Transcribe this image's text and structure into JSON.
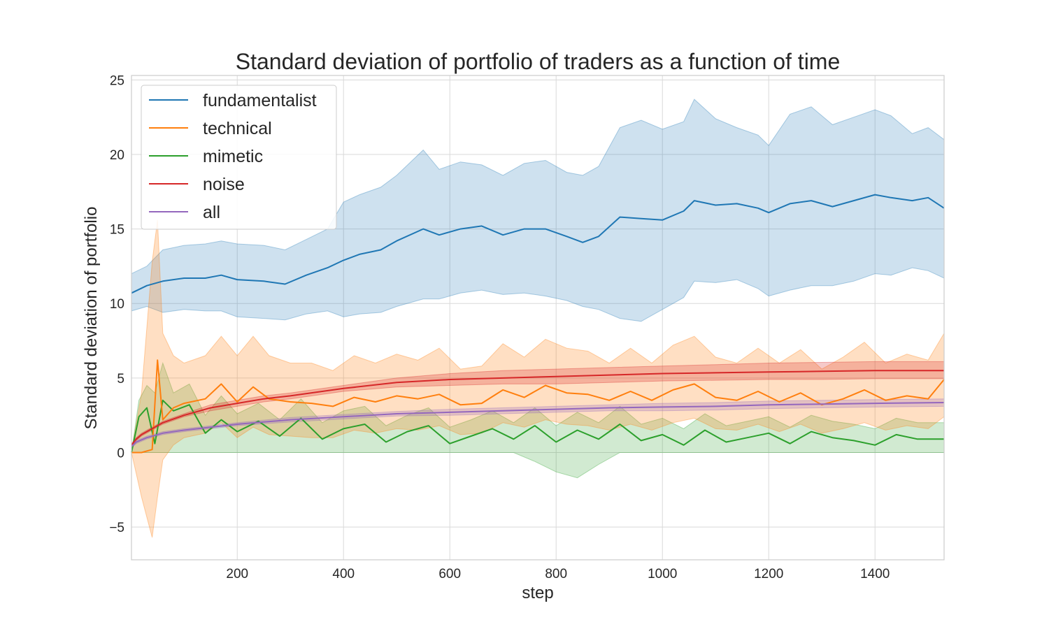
{
  "chart_data": {
    "type": "line",
    "title": "Standard deviation of portfolio of traders as a function of time",
    "xlabel": "step",
    "ylabel": "Standard deviation of portfolio",
    "xlim": [
      1,
      1530
    ],
    "ylim": [
      -7.2,
      25.3
    ],
    "xticks": [
      200,
      400,
      600,
      800,
      1000,
      1200,
      1400
    ],
    "xtick_labels": [
      "200",
      "400",
      "600",
      "800",
      "1000",
      "1200",
      "1400"
    ],
    "yticks": [
      -5,
      0,
      5,
      10,
      15,
      20,
      25
    ],
    "ytick_labels": [
      "−5",
      "0",
      "5",
      "10",
      "15",
      "20",
      "25"
    ],
    "grid": true,
    "legend_position": "upper-left",
    "series": [
      {
        "name": "fundamentalist",
        "color": "#1f77b4",
        "x": [
          1,
          30,
          60,
          100,
          140,
          170,
          200,
          250,
          290,
          330,
          370,
          400,
          430,
          470,
          500,
          550,
          580,
          620,
          660,
          700,
          740,
          780,
          820,
          850,
          880,
          920,
          960,
          1000,
          1040,
          1060,
          1100,
          1140,
          1180,
          1200,
          1240,
          1280,
          1320,
          1360,
          1400,
          1430,
          1470,
          1500,
          1530
        ],
        "values": [
          10.7,
          11.2,
          11.5,
          11.7,
          11.7,
          11.9,
          11.6,
          11.5,
          11.3,
          11.9,
          12.4,
          12.9,
          13.3,
          13.6,
          14.2,
          15.0,
          14.6,
          15.0,
          15.2,
          14.6,
          15.0,
          15.0,
          14.5,
          14.1,
          14.5,
          15.8,
          15.7,
          15.6,
          16.2,
          16.9,
          16.6,
          16.7,
          16.4,
          16.1,
          16.7,
          16.9,
          16.5,
          16.9,
          17.3,
          17.1,
          16.9,
          17.1,
          16.4
        ],
        "band_upper": [
          12.0,
          12.5,
          13.6,
          13.9,
          14.0,
          14.2,
          14.0,
          13.9,
          13.6,
          14.3,
          15.0,
          16.8,
          17.3,
          17.8,
          18.6,
          20.3,
          19.0,
          19.5,
          19.3,
          18.6,
          19.4,
          19.6,
          18.8,
          18.6,
          19.2,
          21.8,
          22.3,
          21.7,
          22.2,
          23.7,
          22.4,
          21.8,
          21.3,
          20.6,
          22.7,
          23.2,
          22.0,
          22.5,
          23.0,
          22.6,
          21.4,
          21.8,
          21.0
        ],
        "band_lower": [
          9.5,
          9.8,
          9.4,
          9.6,
          9.5,
          9.5,
          9.1,
          9.0,
          8.9,
          9.3,
          9.5,
          9.1,
          9.3,
          9.4,
          9.8,
          10.3,
          10.3,
          10.7,
          10.9,
          10.6,
          10.7,
          10.5,
          10.2,
          9.8,
          9.6,
          9.0,
          8.8,
          9.6,
          10.4,
          11.5,
          11.4,
          11.6,
          11.0,
          10.5,
          10.9,
          11.2,
          11.2,
          11.5,
          12.0,
          11.9,
          12.4,
          12.2,
          11.7
        ]
      },
      {
        "name": "technical",
        "color": "#ff7f0e",
        "x": [
          1,
          20,
          40,
          50,
          60,
          80,
          100,
          140,
          170,
          200,
          230,
          260,
          300,
          340,
          380,
          420,
          460,
          500,
          540,
          580,
          620,
          660,
          700,
          740,
          780,
          820,
          860,
          900,
          940,
          980,
          1020,
          1060,
          1100,
          1140,
          1180,
          1220,
          1260,
          1300,
          1340,
          1380,
          1420,
          1460,
          1500,
          1530
        ],
        "values": [
          0.0,
          0.0,
          0.2,
          6.2,
          2.2,
          3.0,
          3.3,
          3.6,
          4.6,
          3.4,
          4.4,
          3.6,
          3.4,
          3.3,
          3.1,
          3.7,
          3.4,
          3.8,
          3.6,
          3.9,
          3.2,
          3.3,
          4.2,
          3.7,
          4.5,
          4.0,
          3.9,
          3.5,
          4.1,
          3.5,
          4.2,
          4.6,
          3.7,
          3.5,
          4.1,
          3.4,
          4.0,
          3.2,
          3.6,
          4.2,
          3.5,
          3.8,
          3.6,
          4.9
        ],
        "band_upper": [
          0.0,
          4.0,
          12.8,
          15.6,
          8.0,
          6.5,
          6.0,
          6.5,
          7.8,
          6.5,
          7.8,
          6.5,
          6.0,
          6.0,
          5.5,
          6.5,
          6.0,
          6.6,
          6.2,
          7.0,
          5.6,
          5.8,
          7.3,
          6.4,
          7.6,
          7.0,
          6.8,
          6.0,
          7.0,
          6.0,
          7.2,
          7.8,
          6.4,
          6.0,
          7.0,
          6.0,
          6.9,
          5.6,
          6.4,
          7.4,
          6.0,
          6.6,
          6.2,
          8.0
        ],
        "band_lower": [
          0.0,
          -3.0,
          -5.7,
          -3.0,
          -0.5,
          0.5,
          1.0,
          1.3,
          2.0,
          1.0,
          1.7,
          1.2,
          1.1,
          1.0,
          1.0,
          1.5,
          1.3,
          1.6,
          1.5,
          1.8,
          1.2,
          1.3,
          2.0,
          1.7,
          2.2,
          1.9,
          1.8,
          1.5,
          1.9,
          1.5,
          2.0,
          2.3,
          1.6,
          1.5,
          1.9,
          1.4,
          1.9,
          1.3,
          1.6,
          2.0,
          1.5,
          1.8,
          1.6,
          2.4
        ]
      },
      {
        "name": "mimetic",
        "color": "#2ca02c",
        "x": [
          1,
          15,
          30,
          45,
          60,
          80,
          110,
          140,
          170,
          200,
          240,
          280,
          320,
          360,
          400,
          440,
          480,
          520,
          560,
          600,
          640,
          680,
          720,
          760,
          800,
          840,
          880,
          920,
          960,
          1000,
          1040,
          1080,
          1120,
          1160,
          1200,
          1240,
          1280,
          1320,
          1360,
          1400,
          1440,
          1480,
          1530
        ],
        "values": [
          0.0,
          2.4,
          3.0,
          0.6,
          3.5,
          2.8,
          3.2,
          1.3,
          2.2,
          1.4,
          2.1,
          1.1,
          2.3,
          0.9,
          1.6,
          1.9,
          0.7,
          1.4,
          1.8,
          0.6,
          1.1,
          1.6,
          0.9,
          1.8,
          0.7,
          1.5,
          0.9,
          1.9,
          0.8,
          1.2,
          0.5,
          1.5,
          0.7,
          1.0,
          1.3,
          0.6,
          1.4,
          1.0,
          0.8,
          0.5,
          1.2,
          0.9,
          0.9
        ],
        "band_upper": [
          0.0,
          3.5,
          4.5,
          4.0,
          6.0,
          4.0,
          4.6,
          2.5,
          3.8,
          2.6,
          3.3,
          2.2,
          3.6,
          2.0,
          2.8,
          3.1,
          1.8,
          2.5,
          3.0,
          1.7,
          2.2,
          2.8,
          2.0,
          3.0,
          1.8,
          2.7,
          2.0,
          3.1,
          1.9,
          2.3,
          1.6,
          2.6,
          1.8,
          2.1,
          2.4,
          1.7,
          2.5,
          2.1,
          1.9,
          1.6,
          2.3,
          2.0,
          2.0
        ],
        "band_lower": [
          0.0,
          0.0,
          0.0,
          0.0,
          0.0,
          0.0,
          0.0,
          0.0,
          0.0,
          0.0,
          0.0,
          0.0,
          0.0,
          0.0,
          0.0,
          0.0,
          0.0,
          0.0,
          0.0,
          0.0,
          0.0,
          0.0,
          0.0,
          -0.6,
          -1.3,
          -1.7,
          -0.8,
          0.0,
          0.0,
          0.0,
          0.0,
          0.0,
          0.0,
          0.0,
          0.0,
          0.0,
          0.0,
          0.0,
          0.0,
          0.0,
          0.0,
          0.0,
          0.0
        ]
      },
      {
        "name": "noise",
        "color": "#d62728",
        "x": [
          1,
          10,
          20,
          40,
          60,
          100,
          150,
          200,
          250,
          300,
          400,
          500,
          600,
          700,
          800,
          900,
          1000,
          1100,
          1200,
          1300,
          1400,
          1530
        ],
        "values": [
          0.5,
          0.9,
          1.2,
          1.6,
          2.0,
          2.5,
          3.0,
          3.3,
          3.6,
          3.8,
          4.3,
          4.7,
          4.9,
          5.0,
          5.1,
          5.2,
          5.3,
          5.35,
          5.4,
          5.45,
          5.5,
          5.5
        ],
        "band_upper": [
          0.6,
          1.0,
          1.3,
          1.7,
          2.1,
          2.6,
          3.2,
          3.5,
          3.8,
          4.0,
          4.5,
          5.0,
          5.3,
          5.5,
          5.6,
          5.7,
          5.8,
          5.9,
          6.0,
          6.05,
          6.1,
          6.1
        ],
        "band_lower": [
          0.4,
          0.8,
          1.1,
          1.5,
          1.9,
          2.4,
          2.8,
          3.1,
          3.4,
          3.6,
          4.1,
          4.4,
          4.5,
          4.6,
          4.6,
          4.7,
          4.8,
          4.85,
          4.9,
          4.9,
          4.95,
          4.95
        ]
      },
      {
        "name": "all",
        "color": "#9467bd",
        "x": [
          1,
          10,
          30,
          60,
          100,
          150,
          200,
          300,
          400,
          500,
          600,
          700,
          800,
          900,
          1000,
          1100,
          1200,
          1300,
          1400,
          1530
        ],
        "values": [
          0.4,
          0.7,
          1.0,
          1.3,
          1.5,
          1.7,
          1.9,
          2.2,
          2.4,
          2.6,
          2.7,
          2.8,
          2.9,
          3.0,
          3.05,
          3.1,
          3.2,
          3.25,
          3.3,
          3.35
        ],
        "band_upper": [
          0.5,
          0.8,
          1.1,
          1.4,
          1.6,
          1.8,
          2.0,
          2.35,
          2.55,
          2.75,
          2.9,
          3.0,
          3.1,
          3.2,
          3.3,
          3.35,
          3.45,
          3.5,
          3.55,
          3.6
        ],
        "band_lower": [
          0.3,
          0.6,
          0.9,
          1.2,
          1.4,
          1.6,
          1.8,
          2.05,
          2.25,
          2.45,
          2.5,
          2.6,
          2.7,
          2.8,
          2.8,
          2.85,
          2.95,
          3.0,
          3.05,
          3.1
        ]
      }
    ]
  }
}
